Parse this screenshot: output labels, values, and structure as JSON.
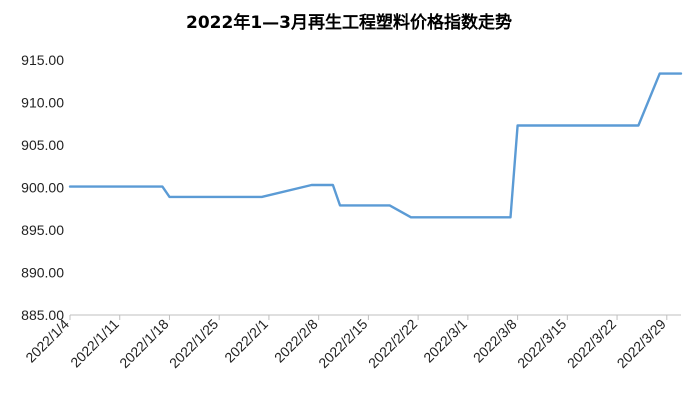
{
  "chart_data": {
    "type": "line",
    "title": "2022年1—3月再生工程塑料价格指数走势",
    "xlabel": "",
    "ylabel": "",
    "ylim": [
      885,
      915
    ],
    "yticks": [
      885,
      890,
      895,
      900,
      905,
      910,
      915
    ],
    "ytick_labels": [
      "885.00",
      "890.00",
      "895.00",
      "900.00",
      "905.00",
      "910.00",
      "915.00"
    ],
    "xlim": [
      "2022-01-04",
      "2022-03-31"
    ],
    "xticks": [
      "2022-01-04",
      "2022-01-11",
      "2022-01-18",
      "2022-01-25",
      "2022-02-01",
      "2022-02-08",
      "2022-02-15",
      "2022-02-22",
      "2022-03-01",
      "2022-03-08",
      "2022-03-15",
      "2022-03-22",
      "2022-03-29"
    ],
    "xtick_labels": [
      "2022/1/4",
      "2022/1/11",
      "2022/1/18",
      "2022/1/25",
      "2022/2/1",
      "2022/2/8",
      "2022/2/15",
      "2022/2/22",
      "2022/3/1",
      "2022/3/8",
      "2022/3/15",
      "2022/3/22",
      "2022/3/29"
    ],
    "grid": false,
    "legend": "none",
    "series": [
      {
        "color": "#5b9bd5",
        "x": [
          "2022-01-04",
          "2022-01-17",
          "2022-01-18",
          "2022-01-31",
          "2022-02-07",
          "2022-02-10",
          "2022-02-11",
          "2022-02-18",
          "2022-02-21",
          "2022-03-07",
          "2022-03-08",
          "2022-03-25",
          "2022-03-28",
          "2022-03-31"
        ],
        "y": [
          900.1,
          900.1,
          898.9,
          898.9,
          900.3,
          900.3,
          897.9,
          897.9,
          896.5,
          896.5,
          907.3,
          907.3,
          913.4,
          913.4
        ]
      }
    ]
  }
}
